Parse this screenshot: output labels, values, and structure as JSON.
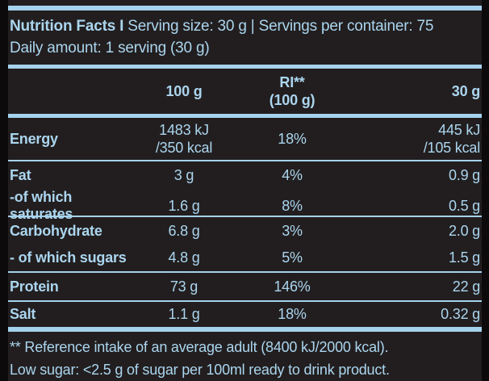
{
  "colors": {
    "background": "#0c0a0b",
    "panel": "#221e1f",
    "accent": "#a5d2ec",
    "text": "#abd5ee"
  },
  "header": {
    "title": "Nutrition Facts I",
    "serving_info": " Serving size: 30 g | Servings per container: 75",
    "daily_amount": "Daily amount: 1 serving (30 g)"
  },
  "table": {
    "col_headers": {
      "per100": "100 g",
      "ri_line1": "RI**",
      "ri_line2": "(100 g)",
      "per30": "30 g"
    },
    "rows": [
      {
        "label": "Energy",
        "per100_line1": "1483 kJ",
        "per100_line2": "/350 kcal",
        "ri": "18%",
        "per30_line1": "445 kJ",
        "per30_line2": "/105 kcal"
      },
      {
        "label": "Fat",
        "per100": "3 g",
        "ri": "4%",
        "per30": "0.9 g"
      },
      {
        "label": "-of which saturates",
        "per100": "1.6 g",
        "ri": "8%",
        "per30": "0.5 g"
      },
      {
        "label": "Carbohydrate",
        "per100": "6.8 g",
        "ri": "3%",
        "per30": "2.0 g"
      },
      {
        "label": "- of which sugars",
        "per100": "4.8 g",
        "ri": "5%",
        "per30": "1.5 g"
      },
      {
        "label": "Protein",
        "per100": "73 g",
        "ri": "146%",
        "per30": "22 g"
      },
      {
        "label": "Salt",
        "per100": "1.1 g",
        "ri": "18%",
        "per30": "0.32 g"
      }
    ]
  },
  "footnotes": {
    "reference": "** Reference intake of an average adult (8400 kJ/2000 kcal).",
    "low_sugar": "Low sugar: <2.5 g of sugar per 100ml ready to drink product."
  }
}
